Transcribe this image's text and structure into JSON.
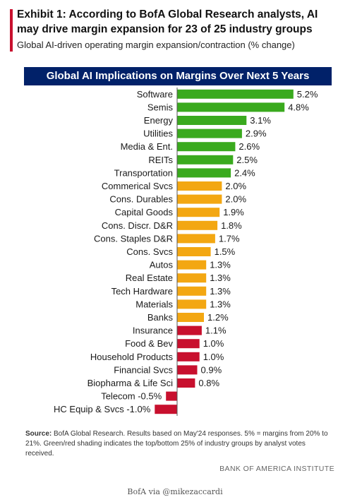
{
  "exhibit": {
    "title": "Exhibit 1: According to BofA Global Research analysts, AI may drive margin expansion for 23 of 25 industry groups",
    "subtitle": "Global AI-driven operating margin expansion/contraction (% change)"
  },
  "chart_data": {
    "type": "bar",
    "orientation": "horizontal",
    "title": "Global AI Implications on Margins Over Next 5 Years",
    "categories": [
      "Software",
      "Semis",
      "Energy",
      "Utilities",
      "Media & Ent.",
      "REITs",
      "Transportation",
      "Commerical Svcs",
      "Cons. Durables",
      "Capital Goods",
      "Cons. Discr. D&R",
      "Cons. Staples D&R",
      "Cons. Svcs",
      "Autos",
      "Real Estate",
      "Tech Hardware",
      "Materials",
      "Banks",
      "Insurance",
      "Food & Bev",
      "Household Products",
      "Financial Svcs",
      "Biopharma & Life Sci",
      "Telecom",
      "HC Equip & Svcs"
    ],
    "values": [
      5.2,
      4.8,
      3.1,
      2.9,
      2.6,
      2.5,
      2.4,
      2.0,
      2.0,
      1.9,
      1.8,
      1.7,
      1.5,
      1.3,
      1.3,
      1.3,
      1.3,
      1.2,
      1.1,
      1.0,
      1.0,
      0.9,
      0.8,
      -0.5,
      -1.0
    ],
    "labels": [
      "5.2%",
      "4.8%",
      "3.1%",
      "2.9%",
      "2.6%",
      "2.5%",
      "2.4%",
      "2.0%",
      "2.0%",
      "1.9%",
      "1.8%",
      "1.7%",
      "1.5%",
      "1.3%",
      "1.3%",
      "1.3%",
      "1.3%",
      "1.2%",
      "1.1%",
      "1.0%",
      "1.0%",
      "0.9%",
      "0.8%",
      "-0.5%",
      "-1.0%"
    ],
    "groups": [
      "top",
      "top",
      "top",
      "top",
      "top",
      "top",
      "top",
      "mid",
      "mid",
      "mid",
      "mid",
      "mid",
      "mid",
      "mid",
      "mid",
      "mid",
      "mid",
      "mid",
      "bottom",
      "bottom",
      "bottom",
      "bottom",
      "bottom",
      "bottom",
      "bottom"
    ],
    "group_colors": {
      "top": "#3aaa1e",
      "mid": "#f3a712",
      "bottom": "#c8102e"
    },
    "xlim": [
      -1.0,
      5.2
    ],
    "grid": false,
    "legend": "none"
  },
  "source": {
    "label": "Source:",
    "text": " BofA Global Research. Results based on May'24 responses. 5% = margins from 20% to 21%. Green/red shading indicates the top/bottom 25% of industry groups by analyst votes received."
  },
  "institute": "BANK OF AMERICA INSTITUTE",
  "credit": "BofA via @mikezaccardi",
  "colors": {
    "header_bg": "#012169",
    "accent": "#c8102e"
  }
}
